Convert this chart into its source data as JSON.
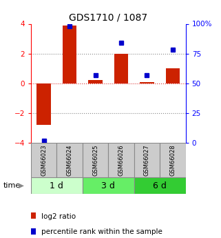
{
  "title": "GDS1710 / 1087",
  "samples": [
    "GSM66023",
    "GSM66024",
    "GSM66025",
    "GSM66026",
    "GSM66027",
    "GSM66028"
  ],
  "log2_ratio": [
    -2.8,
    3.9,
    0.2,
    2.0,
    0.1,
    1.0
  ],
  "percentile_rank": [
    2,
    98,
    57,
    84,
    57,
    78
  ],
  "bar_color": "#cc2200",
  "dot_color": "#0000cc",
  "ylim_left": [
    -4,
    4
  ],
  "ylim_right": [
    0,
    100
  ],
  "yticks_left": [
    -4,
    -2,
    0,
    2,
    4
  ],
  "yticks_right": [
    0,
    25,
    50,
    75,
    100
  ],
  "yticklabels_right": [
    "0",
    "25",
    "50",
    "75",
    "100%"
  ],
  "hlines": [
    2,
    0,
    -2
  ],
  "hline_colors": [
    "#888888",
    "#dd3333",
    "#888888"
  ],
  "hline_styles": [
    "dotted",
    "dotted",
    "dotted"
  ],
  "background": "#ffffff",
  "group_labels": [
    "1 d",
    "3 d",
    "6 d"
  ],
  "group_ranges": [
    [
      0,
      1
    ],
    [
      2,
      3
    ],
    [
      4,
      5
    ]
  ],
  "group_colors": [
    "#ccffcc",
    "#66ee66",
    "#33cc33"
  ],
  "legend_items": [
    {
      "label": "log2 ratio",
      "color": "#cc2200"
    },
    {
      "label": "percentile rank within the sample",
      "color": "#0000cc"
    }
  ]
}
